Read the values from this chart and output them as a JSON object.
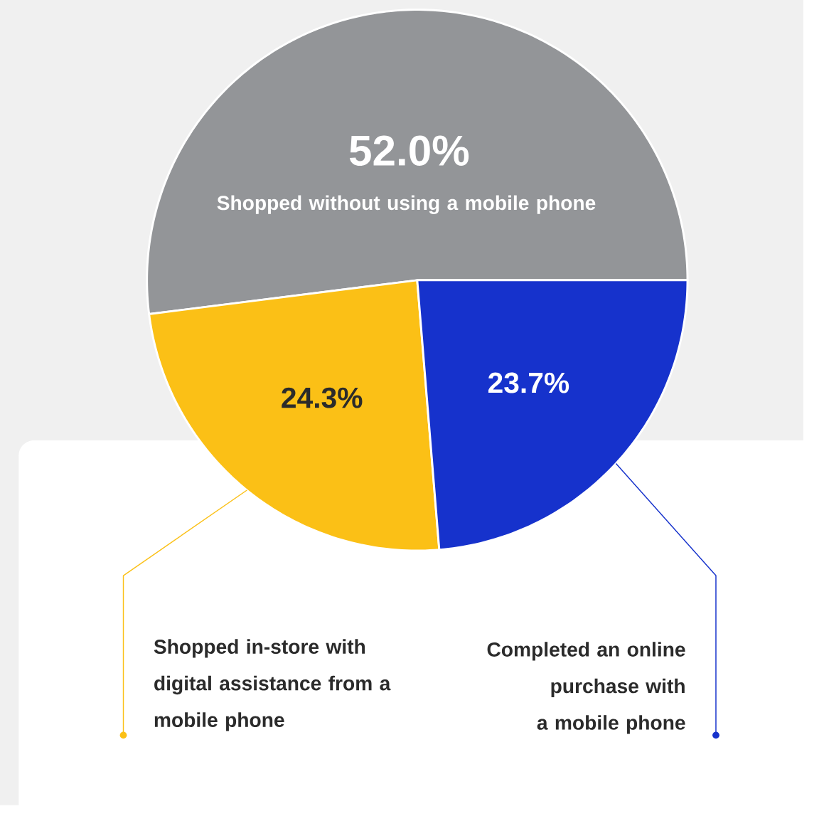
{
  "chart_data": {
    "type": "pie",
    "categories": [
      "Shopped without using a mobile phone",
      "Shopped in-store with digital assistance from a mobile phone",
      "Completed an online purchase with a mobile phone"
    ],
    "values": [
      52.0,
      24.3,
      23.7
    ],
    "colors": [
      "#939598",
      "#fbc016",
      "#1632cc"
    ],
    "value_labels": [
      "52.0%",
      "24.3%",
      "23.7%"
    ]
  }
}
